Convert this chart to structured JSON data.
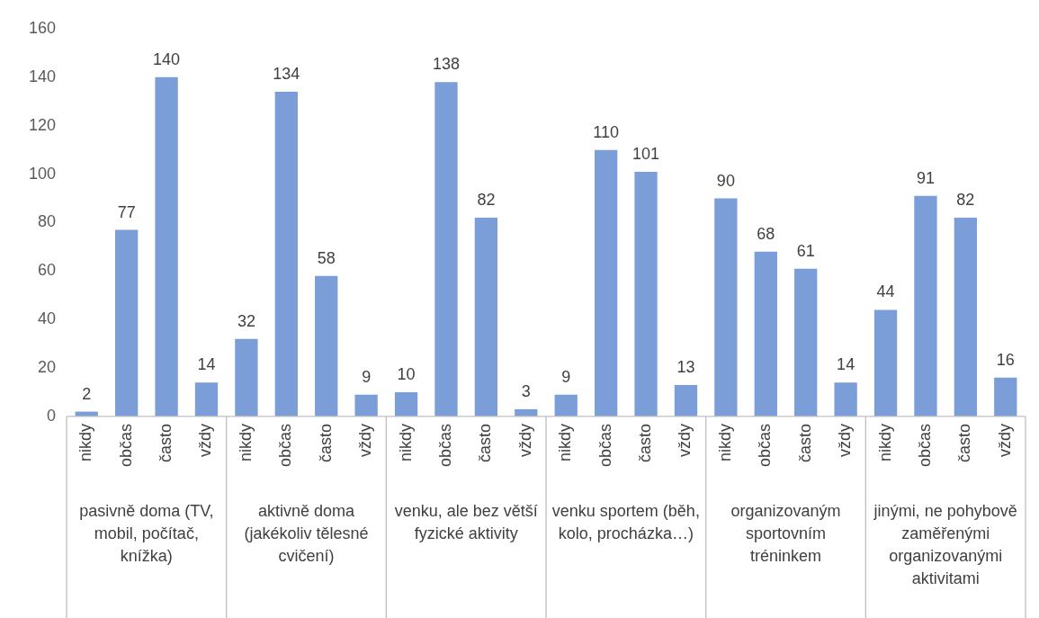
{
  "chart_data": {
    "type": "bar",
    "categories": [
      "nikdy",
      "občas",
      "často",
      "vždy",
      "nikdy",
      "občas",
      "často",
      "vždy",
      "nikdy",
      "občas",
      "často",
      "vždy",
      "nikdy",
      "občas",
      "často",
      "vždy",
      "nikdy",
      "občas",
      "často",
      "vždy",
      "nikdy",
      "občas",
      "často",
      "vždy"
    ],
    "values": [
      2,
      77,
      140,
      14,
      32,
      134,
      58,
      9,
      10,
      138,
      82,
      3,
      9,
      110,
      101,
      13,
      90,
      68,
      61,
      14,
      44,
      91,
      82,
      16
    ],
    "color": "#7b9ed8",
    "ylim": [
      0,
      160
    ],
    "yticks": [
      0,
      20,
      40,
      60,
      80,
      100,
      120,
      140,
      160
    ],
    "grid": false,
    "legend": false,
    "data_labels": true,
    "annotations": [
      "pasivně doma (TV, mobil, počítač, knížka)",
      "aktivně doma (jakékoliv tělesné cvičení)",
      "venku, ale bez větší fyzické aktivity",
      "venku sportem (běh, kolo, procházka…)",
      "organizovaným sportovním tréninkem",
      "jinými, ne pohybově zaměřenými organizovanými aktivitami"
    ]
  }
}
